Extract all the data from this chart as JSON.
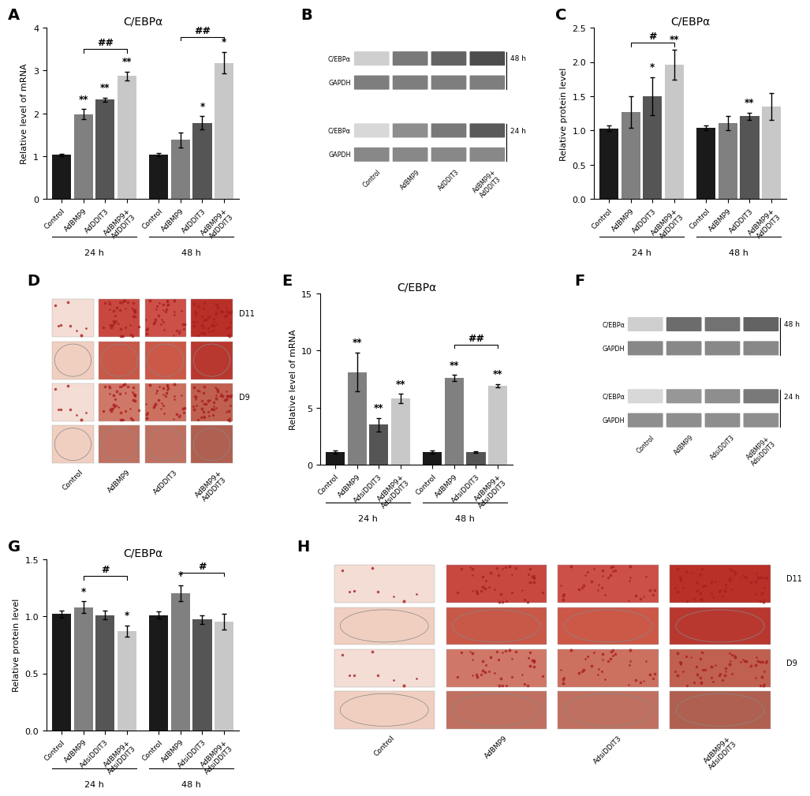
{
  "panel_A": {
    "title": "C/EBPα",
    "ylabel": "Relative level of mRNA",
    "ylim": [
      0,
      4
    ],
    "yticks": [
      0,
      1,
      2,
      3,
      4
    ],
    "values_24h": [
      1.03,
      1.98,
      2.32,
      2.87
    ],
    "errors_24h": [
      0.03,
      0.12,
      0.05,
      0.1
    ],
    "values_48h": [
      1.04,
      1.38,
      1.78,
      3.18
    ],
    "errors_48h": [
      0.04,
      0.18,
      0.15,
      0.25
    ],
    "sig_24h": [
      "",
      "**",
      "**",
      "**"
    ],
    "sig_48h": [
      "",
      "",
      "*",
      "*"
    ],
    "bracket_24h": {
      "xi1": 1,
      "xi2": 3,
      "label": "##",
      "y": 3.5
    },
    "bracket_48h_abs": {
      "label": "##",
      "y": 3.78
    },
    "categories": [
      "Control",
      "AdBMP9",
      "AdDDIT3",
      "AdBMP9+\nAdDDIT3"
    ],
    "colors": [
      "#1a1a1a",
      "#808080",
      "#555555",
      "#c8c8c8"
    ]
  },
  "panel_C": {
    "title": "C/EBPα",
    "ylabel": "Relative protein level",
    "ylim": [
      0,
      2.5
    ],
    "yticks": [
      0.0,
      0.5,
      1.0,
      1.5,
      2.0,
      2.5
    ],
    "values_24h": [
      1.03,
      1.27,
      1.5,
      1.96
    ],
    "errors_24h": [
      0.04,
      0.23,
      0.28,
      0.22
    ],
    "values_48h": [
      1.04,
      1.11,
      1.21,
      1.35
    ],
    "errors_48h": [
      0.03,
      0.1,
      0.05,
      0.2
    ],
    "sig_24h": [
      "",
      "",
      "*",
      "**"
    ],
    "sig_48h": [
      "",
      "",
      "**",
      ""
    ],
    "bracket_24h": {
      "xi1": 1,
      "xi2": 3,
      "label": "#",
      "y": 2.28
    },
    "categories": [
      "Control",
      "AdBMP9",
      "AdDDIT3",
      "AdBMP9+\nAdDDIT3"
    ],
    "colors": [
      "#1a1a1a",
      "#808080",
      "#555555",
      "#c8c8c8"
    ]
  },
  "panel_E": {
    "title": "C/EBPα",
    "ylabel": "Relative level of mRNA",
    "ylim": [
      0,
      15
    ],
    "yticks": [
      0,
      5,
      10,
      15
    ],
    "values_24h": [
      1.1,
      8.1,
      3.5,
      5.8
    ],
    "errors_24h": [
      0.15,
      1.7,
      0.6,
      0.4
    ],
    "values_48h": [
      1.1,
      7.6,
      1.1,
      6.9
    ],
    "errors_48h": [
      0.15,
      0.25,
      0.08,
      0.15
    ],
    "sig_24h": [
      "",
      "**",
      "**",
      "**"
    ],
    "sig_48h": [
      "",
      "**",
      "",
      "**"
    ],
    "bracket_48h_abs": {
      "label": "##",
      "y": 10.5
    },
    "categories": [
      "Control",
      "AdBMP9",
      "AdsiDDIT3",
      "AdBMP9+\nAdsiDDIT3"
    ],
    "colors": [
      "#1a1a1a",
      "#808080",
      "#555555",
      "#c8c8c8"
    ]
  },
  "panel_G": {
    "title": "C/EBPα",
    "ylabel": "Relative protein level",
    "ylim": [
      0.0,
      1.5
    ],
    "yticks": [
      0.0,
      0.5,
      1.0,
      1.5
    ],
    "values_24h": [
      1.02,
      1.08,
      1.01,
      0.87
    ],
    "errors_24h": [
      0.03,
      0.05,
      0.04,
      0.05
    ],
    "values_48h": [
      1.01,
      1.2,
      0.97,
      0.95
    ],
    "errors_48h": [
      0.03,
      0.07,
      0.04,
      0.07
    ],
    "sig_24h": [
      "",
      "*",
      "",
      "*"
    ],
    "sig_48h": [
      "",
      "*",
      "",
      ""
    ],
    "bracket_24h": {
      "xi1": 1,
      "xi2": 3,
      "label": "#",
      "y": 1.35
    },
    "bracket_48h_abs": {
      "label": "#",
      "y": 1.38
    },
    "categories": [
      "Control",
      "AdBMP9",
      "AdsiDDIT3",
      "AdBMP9+\nAdsiDDIT3"
    ],
    "colors": [
      "#1a1a1a",
      "#808080",
      "#555555",
      "#c8c8c8"
    ]
  },
  "background_color": "#ffffff"
}
